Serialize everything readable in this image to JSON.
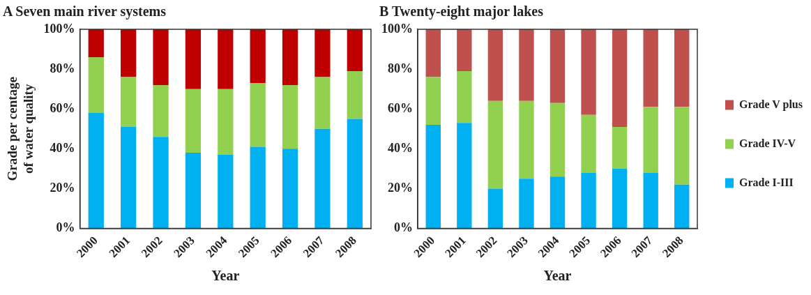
{
  "chart_data": [
    {
      "type": "bar",
      "title": "A Seven main river systems",
      "xlabel": "Year",
      "ylabel": "Grade per centage of water quality",
      "stacked": true,
      "legend": false,
      "grid": false,
      "categories": [
        "2000",
        "2001",
        "2002",
        "2003",
        "2004",
        "2005",
        "2006",
        "2007",
        "2008"
      ],
      "ylim": [
        0,
        100
      ],
      "yticks": [
        {
          "value": 0,
          "label": "0%"
        },
        {
          "value": 20,
          "label": "20%"
        },
        {
          "value": 40,
          "label": "40%"
        },
        {
          "value": 60,
          "label": "60%"
        },
        {
          "value": 80,
          "label": "80%"
        },
        {
          "value": 100,
          "label": "100%"
        }
      ],
      "series": [
        {
          "color": "#00b0f0",
          "values": [
            58,
            51,
            46,
            38,
            37,
            41,
            40,
            50,
            55
          ]
        },
        {
          "color": "#92d050",
          "values": [
            28,
            25,
            26,
            32,
            33,
            32,
            32,
            26,
            24
          ]
        },
        {
          "color": "#c00000",
          "values": [
            14,
            24,
            28,
            30,
            30,
            27,
            28,
            24,
            21
          ]
        }
      ]
    },
    {
      "type": "bar",
      "title": "B Twenty-eight major lakes",
      "xlabel": "Year",
      "stacked": true,
      "legend": "right",
      "grid": false,
      "categories": [
        "2000",
        "2001",
        "2002",
        "2003",
        "2004",
        "2005",
        "2006",
        "2007",
        "2008"
      ],
      "ylim": [
        0,
        100
      ],
      "yticks": [
        {
          "value": 0,
          "label": "0%"
        },
        {
          "value": 20,
          "label": "20%"
        },
        {
          "value": 40,
          "label": "40%"
        },
        {
          "value": 60,
          "label": "60%"
        },
        {
          "value": 80,
          "label": "80%"
        },
        {
          "value": 100,
          "label": "100%"
        }
      ],
      "series": [
        {
          "name": "Grade I-III",
          "color": "#00b0f0",
          "values": [
            52,
            53,
            20,
            25,
            26,
            28,
            30,
            28,
            22
          ]
        },
        {
          "name": "Grade IV-V",
          "color": "#92d050",
          "values": [
            24,
            26,
            44,
            39,
            37,
            29,
            21,
            33,
            39
          ]
        },
        {
          "name": "Grade V plus",
          "color": "#c0504d",
          "values": [
            24,
            21,
            36,
            36,
            37,
            43,
            49,
            39,
            39
          ]
        }
      ]
    }
  ]
}
